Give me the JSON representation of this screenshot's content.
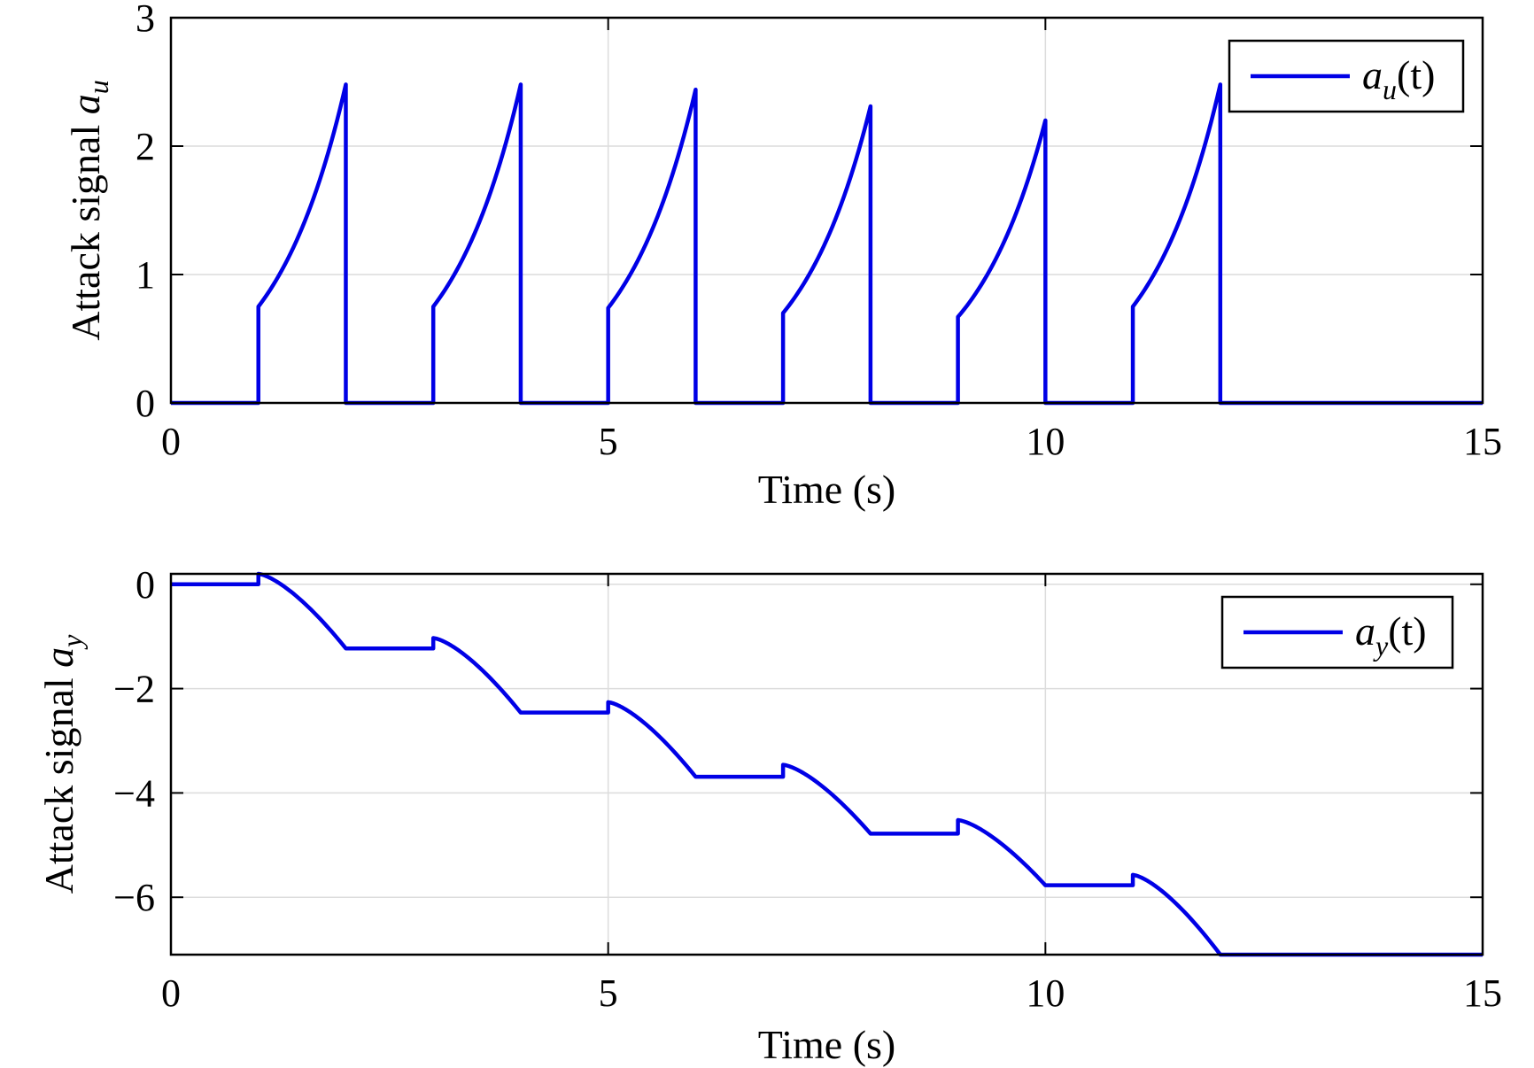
{
  "chart_data": [
    {
      "type": "line",
      "xlabel": "Time (s)",
      "ylabel": "Attack signal",
      "ylabel_symbol": "a",
      "ylabel_subscript": "u",
      "xlim": [
        0,
        15
      ],
      "ylim": [
        0,
        3
      ],
      "xticks": [
        0,
        5,
        10,
        15
      ],
      "yticks": [
        0,
        1,
        2,
        3
      ],
      "xtick_labels": [
        "0",
        "5",
        "10",
        "15"
      ],
      "ytick_labels": [
        "0",
        "1",
        "2",
        "3"
      ],
      "grid": true,
      "legend_position": "top-right",
      "color": "#0000e6",
      "series": [
        {
          "name": "a_u(t)",
          "legend_symbol": "a",
          "legend_subscript": "u",
          "legend_suffix": "(t)",
          "pulses": [
            {
              "start": 1,
              "end": 2,
              "start_value": 0.75,
              "peak": 2.48
            },
            {
              "start": 3,
              "end": 4,
              "start_value": 0.75,
              "peak": 2.48
            },
            {
              "start": 5,
              "end": 6,
              "start_value": 0.74,
              "peak": 2.44
            },
            {
              "start": 7,
              "end": 8,
              "start_value": 0.7,
              "peak": 2.31
            },
            {
              "start": 9,
              "end": 10,
              "start_value": 0.67,
              "peak": 2.2
            },
            {
              "start": 11,
              "end": 12,
              "start_value": 0.75,
              "peak": 2.48
            }
          ],
          "baseline": 0
        }
      ]
    },
    {
      "type": "line",
      "xlabel": "Time (s)",
      "ylabel": "Attack signal",
      "ylabel_symbol": "a",
      "ylabel_subscript": "y",
      "xlim": [
        0,
        15
      ],
      "ylim": [
        -7.1,
        0.2
      ],
      "xticks": [
        0,
        5,
        10,
        15
      ],
      "yticks": [
        0,
        -2,
        -4,
        -6
      ],
      "xtick_labels": [
        "0",
        "5",
        "10",
        "15"
      ],
      "ytick_labels": [
        "0",
        "−2",
        "−4",
        "−6"
      ],
      "grid": true,
      "legend_position": "top-right",
      "color": "#0000e6",
      "series": [
        {
          "name": "a_y(t)",
          "legend_symbol": "a",
          "legend_subscript": "y",
          "legend_suffix": "(t)",
          "segments": [
            {
              "start": 1,
              "end": 2,
              "jump_to": 0.2,
              "end_value": -1.23
            },
            {
              "start": 3,
              "end": 4,
              "jump_to": -1.03,
              "end_value": -2.46
            },
            {
              "start": 5,
              "end": 6,
              "jump_to": -2.26,
              "end_value": -3.69
            },
            {
              "start": 7,
              "end": 8,
              "jump_to": -3.46,
              "end_value": -4.78
            },
            {
              "start": 9,
              "end": 10,
              "jump_to": -4.52,
              "end_value": -5.77
            },
            {
              "start": 11,
              "end": 12,
              "jump_to": -5.57,
              "end_value": -7.1
            }
          ],
          "initial_value": 0
        }
      ]
    }
  ]
}
